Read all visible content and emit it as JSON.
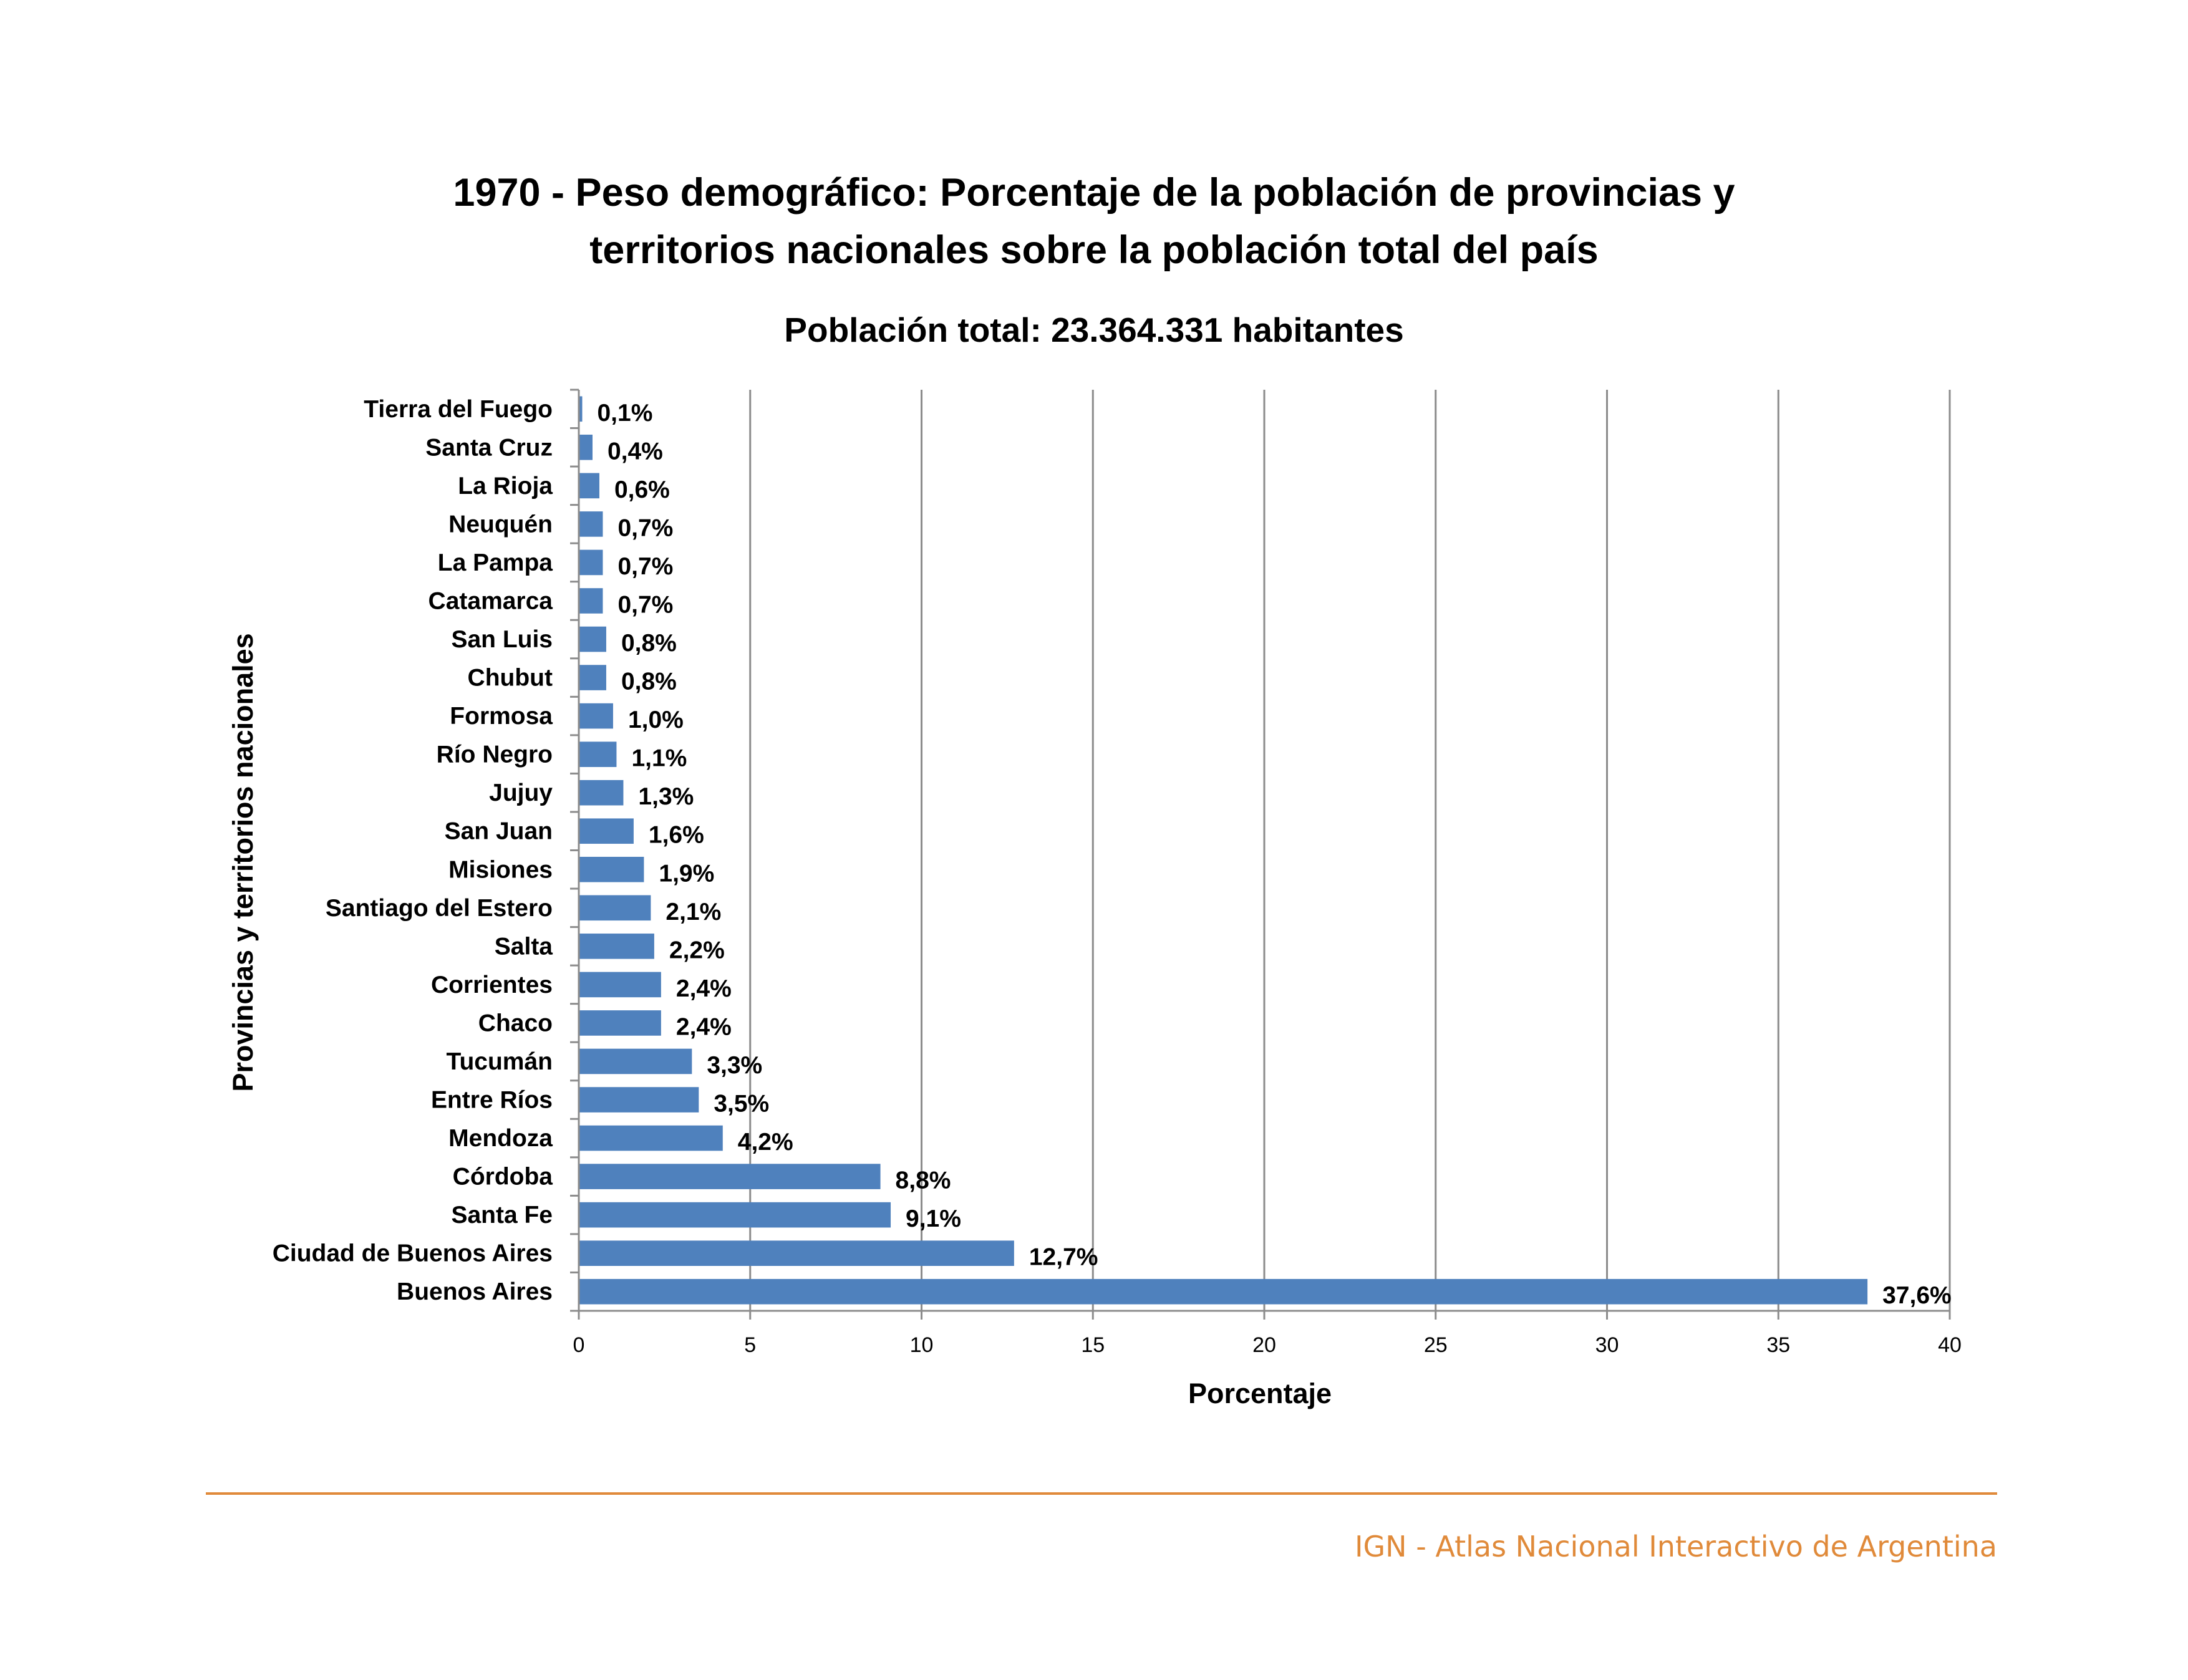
{
  "chart_data": {
    "type": "bar",
    "orientation": "horizontal",
    "title_lines": [
      "1970 - Peso demográfico: Porcentaje de la población de provincias y",
      "territorios nacionales sobre la población total del país"
    ],
    "subtitle": "Población total: 23.364.331 habitantes",
    "xlabel": "Porcentaje",
    "ylabel": "Provincias y territorios nacionales",
    "xlim": [
      0,
      40
    ],
    "xticks": [
      0,
      5,
      10,
      15,
      20,
      25,
      30,
      35,
      40
    ],
    "grid": "vertical",
    "legend": "none",
    "categories": [
      "Tierra del Fuego",
      "Santa Cruz",
      "La Rioja",
      "Neuquén",
      "La Pampa",
      "Catamarca",
      "San Luis",
      "Chubut",
      "Formosa",
      "Río Negro",
      "Jujuy",
      "San Juan",
      "Misiones",
      "Santiago del Estero",
      "Salta",
      "Corrientes",
      "Chaco",
      "Tucumán",
      "Entre Ríos",
      "Mendoza",
      "Córdoba",
      "Santa Fe",
      "Ciudad de Buenos Aires",
      "Buenos Aires"
    ],
    "values": [
      0.1,
      0.4,
      0.6,
      0.7,
      0.7,
      0.7,
      0.8,
      0.8,
      1.0,
      1.1,
      1.3,
      1.6,
      1.9,
      2.1,
      2.2,
      2.4,
      2.4,
      3.3,
      3.5,
      4.2,
      8.8,
      9.1,
      12.7,
      37.6
    ],
    "value_labels": [
      "0,1%",
      "0,4%",
      "0,6%",
      "0,7%",
      "0,7%",
      "0,7%",
      "0,8%",
      "0,8%",
      "1,0%",
      "1,1%",
      "1,3%",
      "1,6%",
      "1,9%",
      "2,1%",
      "2,2%",
      "2,4%",
      "2,4%",
      "3,3%",
      "3,5%",
      "4,2%",
      "8,8%",
      "9,1%",
      "12,7%",
      "37,6%"
    ]
  },
  "footer": {
    "text": "IGN - Atlas Nacional Interactivo de Argentina"
  },
  "colors": {
    "bar": "#4f81bd",
    "grid": "#8c8c8c",
    "footer": "#e08a3a"
  }
}
